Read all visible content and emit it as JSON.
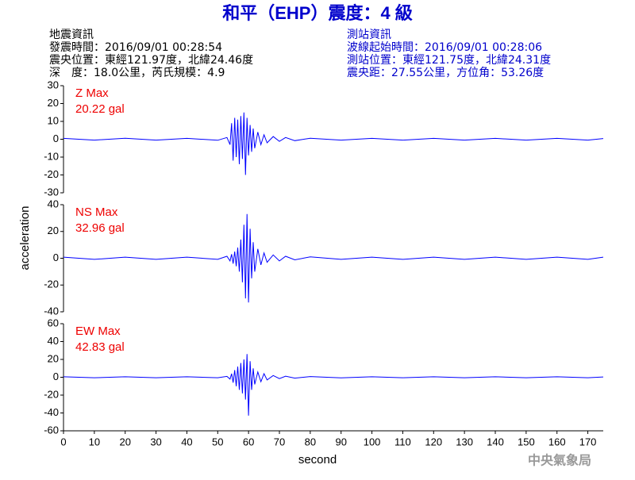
{
  "title": "和平（EHP）震度：4 級",
  "info_left": [
    "地震資訊",
    "發震時間：2016/09/01 00:28:54",
    "震央位置：東經121.97度，北緯24.46度",
    "深　度：18.0公里，芮氏規模：4.9"
  ],
  "info_right": [
    "測站資訊",
    "波線起始時間：2016/09/01 00:28:06",
    "測站位置：東經121.75度，北緯24.31度",
    "震央距：27.55公里，方位角：53.26度"
  ],
  "footer": "中央氣象局",
  "chart_data": [
    {
      "type": "line",
      "annotation": [
        "Z Max",
        "20.22 gal"
      ],
      "annotation_color": "#ee0000",
      "x": [
        0,
        10,
        20,
        30,
        40,
        50,
        53,
        54,
        54.5,
        55,
        55.5,
        56,
        56.5,
        57,
        57.5,
        58,
        58.5,
        59,
        59.5,
        60,
        60.5,
        61,
        61.5,
        62,
        63,
        64,
        65,
        66,
        68,
        70,
        72,
        75,
        80,
        90,
        100,
        110,
        120,
        130,
        140,
        150,
        160,
        170,
        175
      ],
      "series": [
        {
          "name": "Z",
          "color": "#0000ff",
          "values": [
            0.5,
            -0.5,
            0.6,
            -0.5,
            0.5,
            -0.6,
            1,
            -3,
            9,
            -12,
            12,
            -10,
            11,
            -14,
            13,
            -11,
            15,
            -20,
            12,
            -9,
            8,
            -7,
            6,
            -5,
            4,
            -3,
            2.5,
            -2,
            1.5,
            -1.2,
            1,
            -0.8,
            0.6,
            -0.5,
            0.5,
            -0.5,
            0.5,
            -0.5,
            0.5,
            -0.5,
            0.5,
            -0.5,
            0.4
          ]
        }
      ],
      "xlim": [
        0,
        175
      ],
      "ylim": [
        -30,
        30
      ],
      "yticks": [
        -30,
        -20,
        -10,
        0,
        10,
        20,
        30
      ]
    },
    {
      "type": "line",
      "annotation": [
        "NS Max",
        "32.96 gal"
      ],
      "annotation_color": "#ee0000",
      "ylabel": "acceleration",
      "x": [
        0,
        10,
        20,
        30,
        40,
        50,
        53,
        54,
        54.5,
        55,
        55.5,
        56,
        56.5,
        57,
        57.5,
        58,
        58.5,
        59,
        59.5,
        60,
        60.5,
        61,
        61.5,
        62,
        63,
        64,
        65,
        66,
        68,
        70,
        72,
        75,
        80,
        90,
        100,
        110,
        120,
        130,
        140,
        150,
        160,
        170,
        175
      ],
      "series": [
        {
          "name": "NS",
          "color": "#0000ff",
          "values": [
            0.8,
            -0.8,
            0.8,
            -0.8,
            0.8,
            -0.8,
            1.5,
            -2,
            3,
            -4,
            5,
            -6,
            8,
            -10,
            14,
            -18,
            25,
            -30,
            33,
            -33,
            22,
            -15,
            12,
            -10,
            7,
            -5,
            4,
            -3,
            2.5,
            -2,
            1.5,
            -1.2,
            1,
            -0.8,
            0.8,
            -0.8,
            0.8,
            -0.8,
            0.8,
            -0.8,
            0.8,
            -0.8,
            0.8
          ]
        }
      ],
      "xlim": [
        0,
        175
      ],
      "ylim": [
        -40,
        40
      ],
      "yticks": [
        -40,
        -20,
        0,
        20,
        40
      ]
    },
    {
      "type": "line",
      "annotation": [
        "EW Max",
        "42.83 gal"
      ],
      "annotation_color": "#ee0000",
      "xlabel": "second",
      "x": [
        0,
        10,
        20,
        30,
        40,
        50,
        53,
        54,
        54.5,
        55,
        55.5,
        56,
        56.5,
        57,
        57.5,
        58,
        58.5,
        59,
        59.5,
        60,
        60.5,
        61,
        61.5,
        62,
        63,
        64,
        65,
        66,
        68,
        70,
        72,
        75,
        80,
        90,
        100,
        110,
        120,
        130,
        140,
        150,
        160,
        170,
        175
      ],
      "series": [
        {
          "name": "EW",
          "color": "#0000ff",
          "values": [
            0.5,
            -0.5,
            0.5,
            -0.5,
            0.5,
            -0.5,
            1,
            -2,
            4,
            -6,
            8,
            -10,
            12,
            -14,
            16,
            -18,
            20,
            -25,
            26,
            -43,
            18,
            -14,
            10,
            -8,
            6,
            -5,
            4,
            -3,
            2,
            -1.5,
            1.2,
            -1,
            0.8,
            -0.6,
            0.5,
            -0.5,
            0.5,
            -0.5,
            0.5,
            -0.5,
            0.5,
            -0.5,
            0.4
          ]
        }
      ],
      "xlim": [
        0,
        175
      ],
      "ylim": [
        -60,
        60
      ],
      "yticks": [
        -60,
        -40,
        -20,
        0,
        20,
        40,
        60
      ],
      "xticks": [
        0,
        10,
        20,
        30,
        40,
        50,
        60,
        70,
        80,
        90,
        100,
        110,
        120,
        130,
        140,
        150,
        160,
        170
      ]
    }
  ]
}
